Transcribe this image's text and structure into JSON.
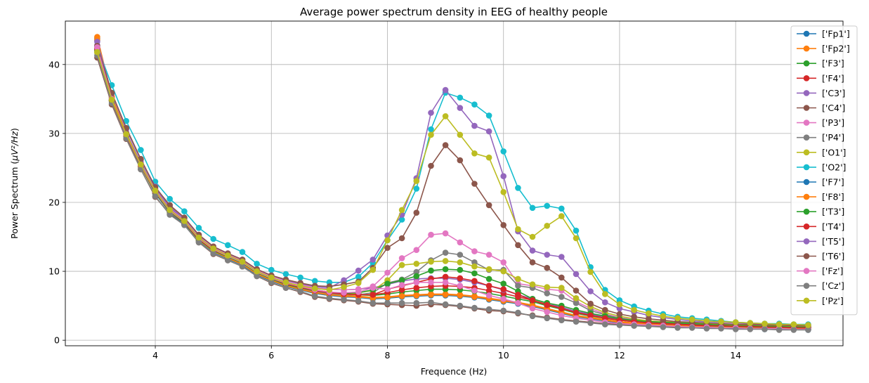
{
  "chart_data": {
    "type": "line",
    "title": "Average power spectrum density in EEG of healthy people",
    "xlabel": "Frequence (Hz)",
    "ylabel_main": "Power Spectrum (",
    "ylabel_math": "μV²/Hz",
    "ylabel_close": ")",
    "xlim": [
      2.45,
      15.85
    ],
    "ylim": [
      -0.8,
      46.3
    ],
    "x_ticks": [
      "4",
      "6",
      "8",
      "10",
      "12",
      "14"
    ],
    "x_tick_values": [
      4,
      6,
      8,
      10,
      12,
      14
    ],
    "y_ticks": [
      "0",
      "10",
      "20",
      "30",
      "40"
    ],
    "y_tick_values": [
      0,
      10,
      20,
      30,
      40
    ],
    "grid": true,
    "legend_position": "upper right",
    "x": [
      3.0,
      3.25,
      3.5,
      3.75,
      4.0,
      4.25,
      4.5,
      4.75,
      5.0,
      5.25,
      5.5,
      5.75,
      6.0,
      6.25,
      6.5,
      6.75,
      7.0,
      7.25,
      7.5,
      7.75,
      8.0,
      8.25,
      8.5,
      8.75,
      9.0,
      9.25,
      9.5,
      9.75,
      10.0,
      10.25,
      10.5,
      10.75,
      11.0,
      11.25,
      11.5,
      11.75,
      12.0,
      12.25,
      12.5,
      12.75,
      13.0,
      13.25,
      13.5,
      13.75,
      14.0,
      14.25,
      14.5,
      14.75,
      15.0,
      15.25
    ],
    "series": [
      {
        "name": "['Fp1']",
        "color": "#1f77b4",
        "values": [
          43.8,
          35.3,
          30.0,
          25.5,
          21.4,
          18.6,
          17.0,
          14.5,
          12.9,
          11.9,
          11.0,
          9.6,
          8.7,
          7.9,
          7.4,
          6.9,
          6.6,
          6.4,
          6.3,
          6.1,
          6.2,
          6.4,
          6.5,
          6.6,
          6.6,
          6.5,
          6.3,
          6.0,
          5.7,
          5.4,
          5.0,
          4.5,
          4.0,
          3.5,
          3.2,
          2.9,
          2.6,
          2.4,
          2.3,
          2.2,
          2.1,
          2.0,
          1.9,
          1.9,
          1.8,
          1.8,
          1.7,
          1.7,
          1.7,
          1.6
        ]
      },
      {
        "name": "['Fp2']",
        "color": "#ff7f0e",
        "values": [
          44.0,
          35.4,
          30.1,
          25.6,
          21.5,
          18.7,
          17.1,
          14.6,
          13.0,
          12.0,
          11.1,
          9.7,
          8.8,
          8.0,
          7.5,
          7.0,
          6.7,
          6.5,
          6.4,
          6.2,
          6.3,
          6.5,
          6.6,
          6.7,
          6.7,
          6.6,
          6.4,
          6.1,
          5.8,
          5.5,
          5.1,
          4.6,
          4.1,
          3.6,
          3.3,
          3.0,
          2.7,
          2.5,
          2.4,
          2.3,
          2.2,
          2.1,
          2.0,
          1.9,
          1.9,
          1.8,
          1.8,
          1.7,
          1.7,
          1.7
        ]
      },
      {
        "name": "['F3']",
        "color": "#2ca02c",
        "values": [
          42.2,
          34.8,
          29.7,
          25.3,
          21.5,
          18.8,
          17.1,
          14.7,
          13.1,
          12.2,
          11.3,
          9.9,
          9.0,
          8.2,
          7.7,
          7.2,
          6.9,
          6.7,
          6.6,
          6.5,
          6.7,
          7.0,
          7.2,
          7.4,
          7.4,
          7.3,
          7.1,
          6.8,
          6.4,
          6.0,
          5.6,
          5.0,
          4.5,
          3.9,
          3.5,
          3.2,
          2.9,
          2.7,
          2.5,
          2.4,
          2.3,
          2.2,
          2.1,
          2.0,
          2.0,
          1.9,
          1.9,
          1.8,
          1.8,
          1.8
        ]
      },
      {
        "name": "['F4']",
        "color": "#d62728",
        "values": [
          42.4,
          34.9,
          29.8,
          25.4,
          21.6,
          18.9,
          17.2,
          14.8,
          13.2,
          12.3,
          11.4,
          10.0,
          9.1,
          8.3,
          7.8,
          7.3,
          7.0,
          6.8,
          6.7,
          6.6,
          6.9,
          7.3,
          7.6,
          7.8,
          7.9,
          7.8,
          7.6,
          7.2,
          6.8,
          6.3,
          5.8,
          5.2,
          4.7,
          4.1,
          3.7,
          3.3,
          3.0,
          2.8,
          2.6,
          2.5,
          2.4,
          2.3,
          2.2,
          2.1,
          2.0,
          2.0,
          1.9,
          1.9,
          1.8,
          1.8
        ]
      },
      {
        "name": "['C3']",
        "color": "#9467bd",
        "values": [
          42.8,
          35.2,
          30.1,
          25.8,
          22.0,
          19.2,
          17.5,
          15.1,
          13.5,
          12.5,
          11.6,
          10.2,
          9.3,
          8.6,
          8.1,
          7.6,
          7.4,
          7.3,
          7.4,
          7.6,
          8.1,
          8.6,
          8.9,
          9.0,
          9.0,
          8.8,
          8.4,
          7.9,
          7.3,
          6.6,
          6.0,
          5.4,
          4.8,
          4.2,
          3.8,
          3.4,
          3.1,
          2.9,
          2.7,
          2.6,
          2.5,
          2.4,
          2.3,
          2.2,
          2.1,
          2.1,
          2.0,
          2.0,
          1.9,
          1.9
        ]
      },
      {
        "name": "['C4']",
        "color": "#8c564b",
        "values": [
          41.0,
          34.2,
          29.2,
          24.8,
          20.8,
          18.3,
          16.8,
          14.2,
          12.5,
          11.6,
          10.7,
          9.3,
          8.3,
          7.6,
          7.0,
          6.3,
          6.0,
          5.8,
          5.6,
          5.3,
          5.2,
          5.1,
          5.0,
          5.2,
          5.1,
          4.9,
          4.6,
          4.3,
          4.2,
          3.9,
          3.6,
          3.3,
          3.0,
          2.8,
          2.6,
          2.4,
          2.3,
          2.2,
          2.1,
          2.0,
          1.9,
          1.9,
          1.8,
          1.8,
          1.7,
          1.7,
          1.7,
          1.6,
          1.6,
          1.6
        ]
      },
      {
        "name": "['P3']",
        "color": "#e377c2",
        "values": [
          42.0,
          34.9,
          29.9,
          25.6,
          21.8,
          19.0,
          17.4,
          15.0,
          13.4,
          12.4,
          11.6,
          10.2,
          9.3,
          8.6,
          8.1,
          7.6,
          7.4,
          7.3,
          7.4,
          7.8,
          9.8,
          11.9,
          13.1,
          15.3,
          15.5,
          14.2,
          12.9,
          12.4,
          11.3,
          8.2,
          7.9,
          7.4,
          7.2,
          5.6,
          4.6,
          3.8,
          3.3,
          3.0,
          2.8,
          2.7,
          2.6,
          2.5,
          2.4,
          2.3,
          2.3,
          2.2,
          2.2,
          2.1,
          2.1,
          2.0
        ]
      },
      {
        "name": "['P4']",
        "color": "#7f7f7f",
        "values": [
          42.1,
          34.8,
          29.7,
          25.3,
          21.5,
          18.7,
          17.1,
          14.7,
          13.1,
          12.1,
          11.2,
          9.8,
          8.9,
          8.1,
          7.6,
          7.1,
          6.8,
          6.6,
          6.6,
          6.9,
          8.3,
          8.8,
          9.9,
          11.6,
          12.7,
          12.4,
          11.3,
          10.2,
          10.2,
          7.9,
          7.6,
          6.8,
          6.3,
          5.4,
          4.3,
          3.7,
          3.2,
          2.9,
          2.7,
          2.6,
          2.5,
          2.4,
          2.3,
          2.2,
          2.2,
          2.1,
          2.1,
          2.0,
          2.0,
          1.9
        ]
      },
      {
        "name": "['O1']",
        "color": "#bcbd22",
        "values": [
          41.7,
          34.7,
          29.6,
          25.2,
          21.3,
          18.5,
          16.9,
          14.4,
          12.8,
          11.8,
          10.9,
          9.5,
          8.6,
          7.8,
          7.3,
          6.8,
          6.5,
          6.5,
          6.9,
          7.2,
          8.7,
          10.9,
          11.1,
          11.4,
          11.5,
          11.3,
          10.7,
          10.3,
          10.0,
          8.9,
          8.1,
          7.7,
          7.6,
          6.1,
          4.9,
          4.0,
          3.5,
          3.1,
          2.8,
          2.7,
          2.6,
          2.5,
          2.4,
          2.3,
          2.2,
          2.2,
          2.1,
          2.1,
          2.0,
          2.0
        ]
      },
      {
        "name": "['O2']",
        "color": "#17becf",
        "values": [
          42.6,
          37.0,
          31.8,
          27.6,
          23.0,
          20.5,
          18.7,
          16.3,
          14.7,
          13.8,
          12.8,
          11.1,
          10.2,
          9.6,
          9.1,
          8.6,
          8.4,
          8.4,
          9.2,
          11.2,
          14.5,
          17.5,
          22.0,
          30.6,
          35.9,
          35.2,
          34.2,
          32.6,
          27.4,
          22.1,
          19.2,
          19.5,
          19.1,
          15.9,
          10.6,
          7.3,
          5.8,
          4.9,
          4.3,
          3.8,
          3.4,
          3.2,
          3.0,
          2.8,
          2.6,
          2.5,
          2.4,
          2.4,
          2.3,
          2.3
        ]
      },
      {
        "name": "['F7']",
        "color": "#1f77b4",
        "values": [
          43.5,
          35.1,
          29.9,
          25.4,
          21.3,
          18.5,
          16.9,
          14.4,
          12.8,
          11.8,
          10.9,
          9.5,
          8.6,
          7.8,
          7.3,
          6.8,
          6.5,
          6.3,
          6.2,
          6.0,
          6.1,
          6.3,
          6.4,
          6.5,
          6.5,
          6.4,
          6.2,
          5.9,
          5.6,
          5.3,
          4.9,
          4.4,
          3.9,
          3.4,
          3.1,
          2.8,
          2.5,
          2.3,
          2.2,
          2.1,
          2.0,
          1.9,
          1.8,
          1.8,
          1.7,
          1.7,
          1.6,
          1.6,
          1.6,
          1.5
        ]
      },
      {
        "name": "['F8']",
        "color": "#ff7f0e",
        "values": [
          43.6,
          35.2,
          30.0,
          25.5,
          21.4,
          18.6,
          17.0,
          14.5,
          12.9,
          11.9,
          11.0,
          9.6,
          8.7,
          7.9,
          7.4,
          6.9,
          6.6,
          6.4,
          6.3,
          6.1,
          6.2,
          6.4,
          6.5,
          6.6,
          6.6,
          6.5,
          6.3,
          6.0,
          5.7,
          5.4,
          5.0,
          4.5,
          4.0,
          3.5,
          3.2,
          2.9,
          2.6,
          2.4,
          2.3,
          2.2,
          2.1,
          2.0,
          1.9,
          1.9,
          1.8,
          1.8,
          1.7,
          1.7,
          1.7,
          1.6
        ]
      },
      {
        "name": "['T3']",
        "color": "#2ca02c",
        "values": [
          42.0,
          34.7,
          29.6,
          25.2,
          21.4,
          18.7,
          17.0,
          14.6,
          13.0,
          12.1,
          11.2,
          9.8,
          8.9,
          8.1,
          7.6,
          7.2,
          6.9,
          6.8,
          6.9,
          7.3,
          8.2,
          8.7,
          9.3,
          10.1,
          10.3,
          10.2,
          9.7,
          8.9,
          8.2,
          7.1,
          6.0,
          5.4,
          5.0,
          4.4,
          3.9,
          3.5,
          3.1,
          2.9,
          2.7,
          2.6,
          2.5,
          2.4,
          2.3,
          2.2,
          2.1,
          2.1,
          2.0,
          2.0,
          1.9,
          1.9
        ]
      },
      {
        "name": "['T4']",
        "color": "#d62728",
        "values": [
          42.3,
          34.8,
          29.7,
          25.3,
          21.5,
          18.8,
          17.1,
          14.7,
          13.1,
          12.2,
          11.3,
          9.9,
          9.0,
          8.2,
          7.7,
          7.2,
          6.9,
          6.7,
          6.6,
          6.6,
          7.4,
          7.9,
          8.4,
          8.9,
          9.2,
          9.0,
          8.6,
          7.9,
          7.4,
          6.6,
          5.8,
          5.1,
          4.6,
          4.0,
          3.6,
          3.2,
          2.9,
          2.7,
          2.5,
          2.4,
          2.3,
          2.2,
          2.1,
          2.1,
          2.0,
          2.0,
          1.9,
          1.9,
          1.8,
          1.8
        ]
      },
      {
        "name": "['T5']",
        "color": "#9467bd",
        "values": [
          43.3,
          35.8,
          30.6,
          26.2,
          22.3,
          19.4,
          17.7,
          15.3,
          13.6,
          12.6,
          11.7,
          10.3,
          9.4,
          8.7,
          8.2,
          7.8,
          7.6,
          8.7,
          10.1,
          11.7,
          15.2,
          18.2,
          23.5,
          33.0,
          36.3,
          33.7,
          31.1,
          30.3,
          23.8,
          15.8,
          13.0,
          12.4,
          12.1,
          9.6,
          7.1,
          5.5,
          4.6,
          4.1,
          3.6,
          3.3,
          3.0,
          2.8,
          2.7,
          2.6,
          2.5,
          2.4,
          2.3,
          2.3,
          2.2,
          2.2
        ]
      },
      {
        "name": "['T6']",
        "color": "#8c564b",
        "values": [
          42.7,
          35.9,
          30.8,
          26.3,
          22.2,
          19.6,
          17.8,
          15.3,
          13.6,
          12.6,
          11.7,
          10.3,
          9.4,
          8.8,
          8.3,
          7.9,
          7.8,
          8.1,
          8.5,
          10.5,
          13.4,
          14.8,
          18.5,
          25.3,
          28.3,
          26.1,
          22.7,
          19.6,
          16.7,
          13.8,
          11.3,
          10.5,
          9.1,
          7.2,
          5.3,
          4.4,
          3.8,
          3.4,
          3.1,
          2.9,
          2.7,
          2.6,
          2.5,
          2.4,
          2.3,
          2.3,
          2.2,
          2.2,
          2.1,
          2.1
        ]
      },
      {
        "name": "['Fz']",
        "color": "#e377c2",
        "values": [
          42.5,
          35.0,
          29.8,
          25.4,
          21.6,
          18.8,
          17.2,
          14.8,
          13.2,
          12.2,
          11.3,
          9.9,
          9.0,
          8.3,
          7.8,
          7.3,
          7.0,
          6.9,
          7.0,
          7.6,
          7.4,
          8.0,
          8.4,
          8.4,
          8.4,
          7.9,
          7.2,
          6.5,
          6.0,
          5.4,
          4.6,
          4.1,
          3.6,
          3.2,
          2.9,
          2.6,
          2.4,
          2.3,
          2.2,
          2.1,
          2.0,
          1.9,
          1.9,
          1.8,
          1.8,
          1.7,
          1.7,
          1.7,
          1.6,
          1.6
        ]
      },
      {
        "name": "['Cz']",
        "color": "#7f7f7f",
        "values": [
          41.3,
          34.4,
          29.3,
          24.8,
          20.9,
          18.2,
          16.7,
          14.2,
          12.6,
          11.6,
          10.7,
          9.3,
          8.4,
          7.6,
          7.1,
          6.4,
          6.1,
          5.9,
          5.7,
          5.4,
          5.4,
          5.4,
          5.4,
          5.5,
          5.2,
          5.0,
          4.7,
          4.5,
          4.3,
          4.0,
          3.5,
          3.2,
          2.9,
          2.7,
          2.5,
          2.3,
          2.2,
          2.1,
          2.0,
          1.9,
          1.8,
          1.8,
          1.7,
          1.7,
          1.6,
          1.6,
          1.6,
          1.5,
          1.5,
          1.5
        ]
      },
      {
        "name": "['Pz']",
        "color": "#bcbd22",
        "values": [
          41.8,
          34.9,
          29.9,
          25.5,
          21.7,
          18.9,
          17.3,
          14.9,
          13.3,
          12.3,
          11.4,
          10.0,
          9.1,
          8.4,
          7.9,
          7.5,
          7.3,
          7.7,
          8.3,
          10.2,
          14.5,
          18.9,
          23.1,
          29.8,
          32.5,
          29.8,
          27.1,
          26.5,
          21.5,
          16.1,
          15.0,
          16.6,
          18.0,
          14.8,
          9.9,
          6.7,
          5.2,
          4.4,
          3.9,
          3.5,
          3.2,
          3.0,
          2.8,
          2.7,
          2.6,
          2.5,
          2.4,
          2.3,
          2.3,
          2.2
        ]
      }
    ]
  }
}
